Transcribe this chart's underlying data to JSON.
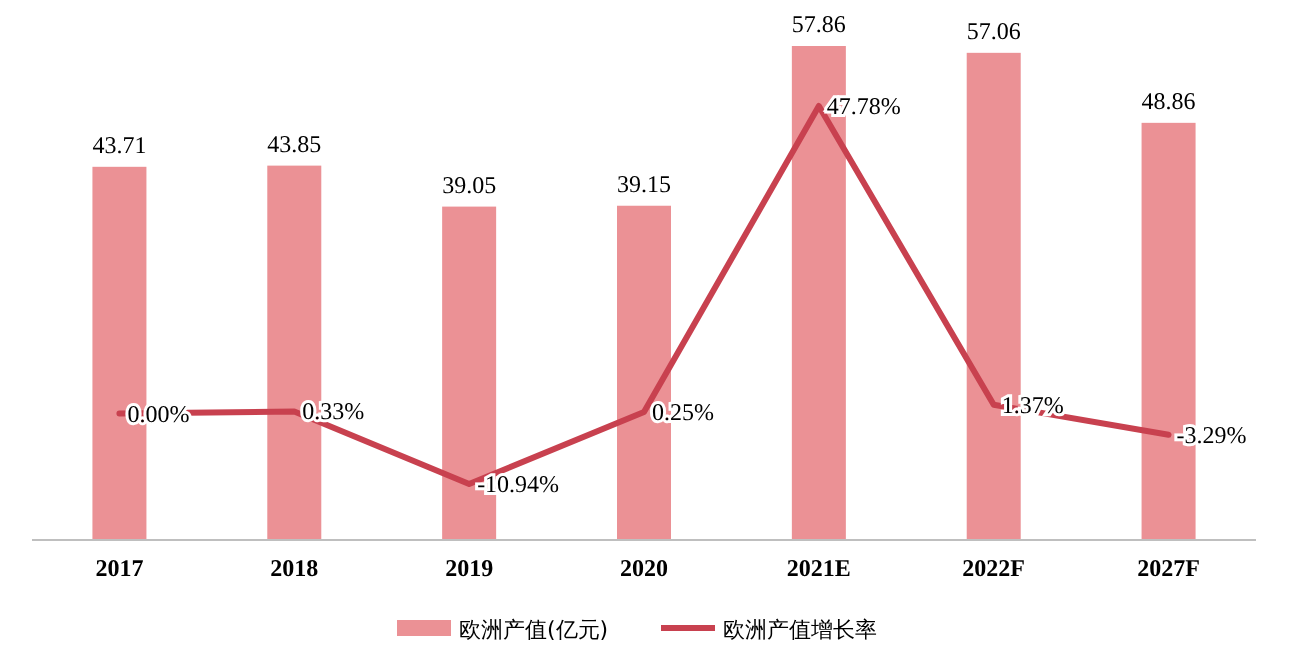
{
  "chart_data": {
    "type": "bar",
    "categories": [
      "2017",
      "2018",
      "2019",
      "2020",
      "2021E",
      "2022F",
      "2027F"
    ],
    "series": [
      {
        "name": "欧洲产值(亿元)",
        "color": "#eb9195",
        "values": [
          43.71,
          43.85,
          39.05,
          39.15,
          57.86,
          57.06,
          48.86
        ],
        "value_labels": [
          "43.71",
          "43.85",
          "39.05",
          "39.15",
          "57.86",
          "57.06",
          "48.86"
        ]
      },
      {
        "name": "欧洲产值增长率",
        "type": "line",
        "axis": "y2",
        "color": "#c8414f",
        "values": [
          0.0,
          0.33,
          -10.94,
          0.25,
          47.78,
          1.37,
          -3.29
        ],
        "value_labels": [
          "0.00%",
          "0.33%",
          "-10.94%",
          "0.25%",
          "47.78%",
          "1.37%",
          "-3.29%"
        ]
      }
    ],
    "legend": "bottom"
  }
}
